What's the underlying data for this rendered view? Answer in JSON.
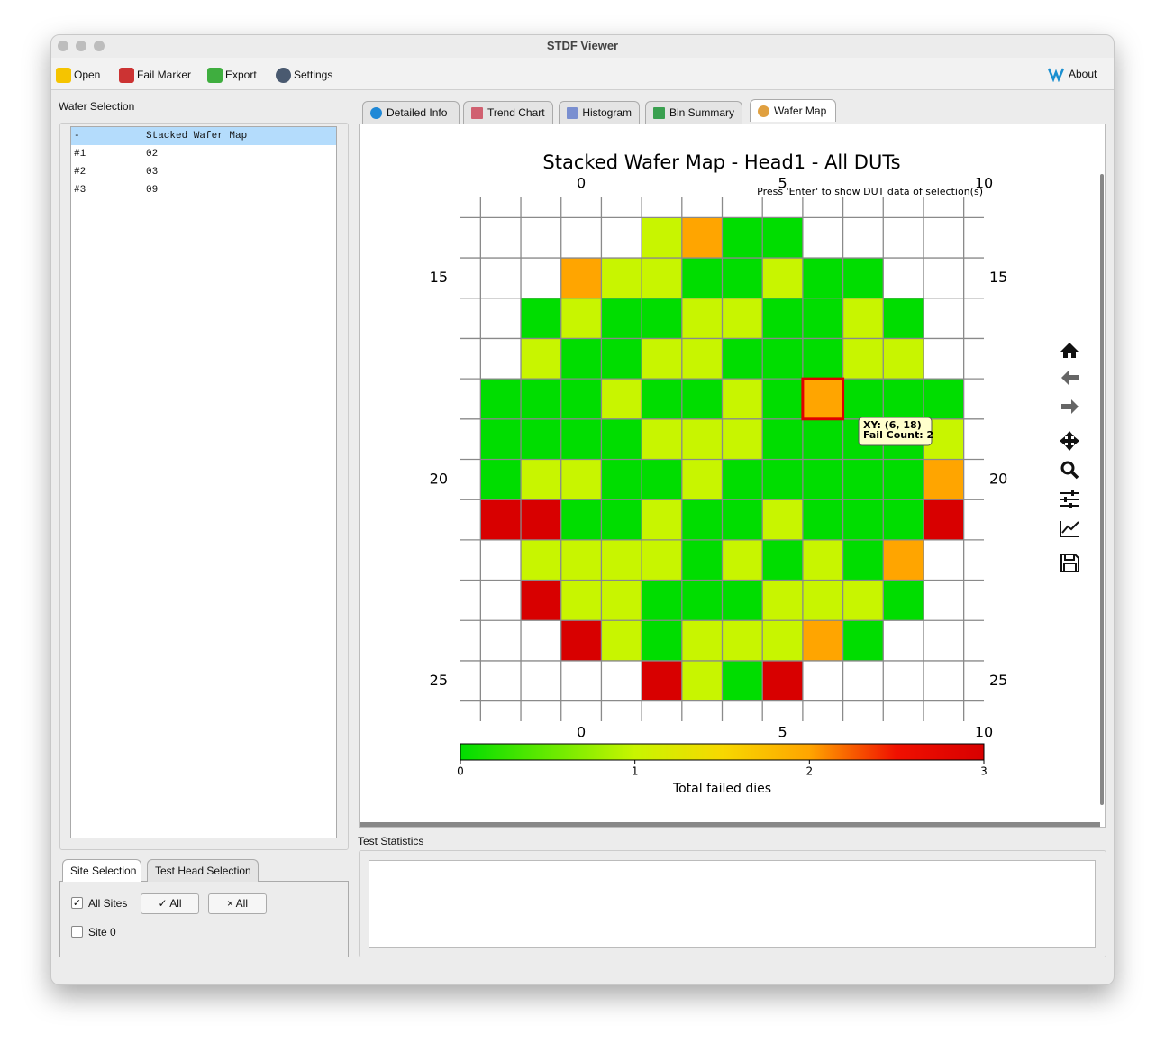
{
  "window": {
    "title": "STDF Viewer"
  },
  "toolbar": {
    "items": [
      "Open",
      "Fail Marker",
      "Export",
      "Settings"
    ],
    "about": "About"
  },
  "wafer_selection": {
    "title": "Wafer Selection",
    "rows": [
      [
        "-",
        "Stacked Wafer Map"
      ],
      [
        "#1",
        "02"
      ],
      [
        "#2",
        "03"
      ],
      [
        "#3",
        "09"
      ]
    ]
  },
  "tabs": {
    "items": [
      "Detailed Info",
      "Trend Chart",
      "Histogram",
      "Bin Summary",
      "Wafer Map"
    ],
    "active": 4
  },
  "site_panel": {
    "tabs": [
      "Site Selection",
      "Test Head Selection"
    ],
    "all_sites": "All Sites",
    "check_all": "✓ All",
    "uncheck_all": "× All",
    "sites": [
      "Site 0"
    ]
  },
  "test_statistics": {
    "title": "Test Statistics"
  },
  "chart_data": {
    "type": "heatmap",
    "title": "Stacked Wafer Map - Head1 - All DUTs",
    "note": "Press 'Enter' to show DUT data of selection(s)",
    "x": [
      -2,
      -1,
      0,
      1,
      2,
      3,
      4,
      5,
      6,
      7,
      8,
      9
    ],
    "y": [
      14,
      15,
      16,
      17,
      18,
      19,
      20,
      21,
      22,
      23,
      24,
      25
    ],
    "values": [
      [
        null,
        null,
        null,
        null,
        1,
        2,
        0,
        0,
        null,
        null,
        null,
        null
      ],
      [
        null,
        null,
        2,
        1,
        1,
        0,
        0,
        1,
        0,
        0,
        null,
        null
      ],
      [
        null,
        0,
        1,
        0,
        0,
        1,
        1,
        0,
        0,
        1,
        0,
        null
      ],
      [
        null,
        1,
        0,
        0,
        1,
        1,
        0,
        0,
        0,
        1,
        1,
        null
      ],
      [
        0,
        0,
        0,
        1,
        0,
        0,
        1,
        0,
        2,
        0,
        0,
        0
      ],
      [
        0,
        0,
        0,
        0,
        1,
        1,
        1,
        0,
        0,
        0,
        0,
        1
      ],
      [
        0,
        1,
        1,
        0,
        0,
        1,
        0,
        0,
        0,
        0,
        0,
        2
      ],
      [
        3,
        3,
        0,
        0,
        1,
        0,
        0,
        1,
        0,
        0,
        0,
        3
      ],
      [
        null,
        1,
        1,
        1,
        1,
        0,
        1,
        0,
        1,
        0,
        2,
        null
      ],
      [
        null,
        3,
        1,
        1,
        0,
        0,
        0,
        1,
        1,
        1,
        0,
        null
      ],
      [
        null,
        null,
        3,
        1,
        0,
        1,
        1,
        1,
        2,
        0,
        null,
        null
      ],
      [
        null,
        null,
        null,
        null,
        3,
        1,
        0,
        3,
        null,
        null,
        null,
        null
      ]
    ],
    "xlim": [
      -3,
      10
    ],
    "ylim": [
      26,
      13
    ],
    "xticks": [
      0,
      5,
      10
    ],
    "yticks": [
      15,
      20,
      25
    ],
    "grid": true,
    "colorscale": [
      {
        "value": 0,
        "color": "#00dd00"
      },
      {
        "value": 1,
        "color": "#c8f500"
      },
      {
        "value": 1.5,
        "color": "#f7d800"
      },
      {
        "value": 2,
        "color": "#ffa500"
      },
      {
        "value": 2.5,
        "color": "#f01000"
      },
      {
        "value": 3,
        "color": "#d80000"
      }
    ],
    "colorbar": {
      "label": "Total failed dies",
      "lim": [
        0,
        3
      ],
      "ticks": [
        0,
        1,
        2,
        3
      ]
    },
    "selection": {
      "x": 6,
      "y": 18
    },
    "tooltip": [
      "XY: (6, 18)",
      "Fail Count: 2"
    ]
  }
}
